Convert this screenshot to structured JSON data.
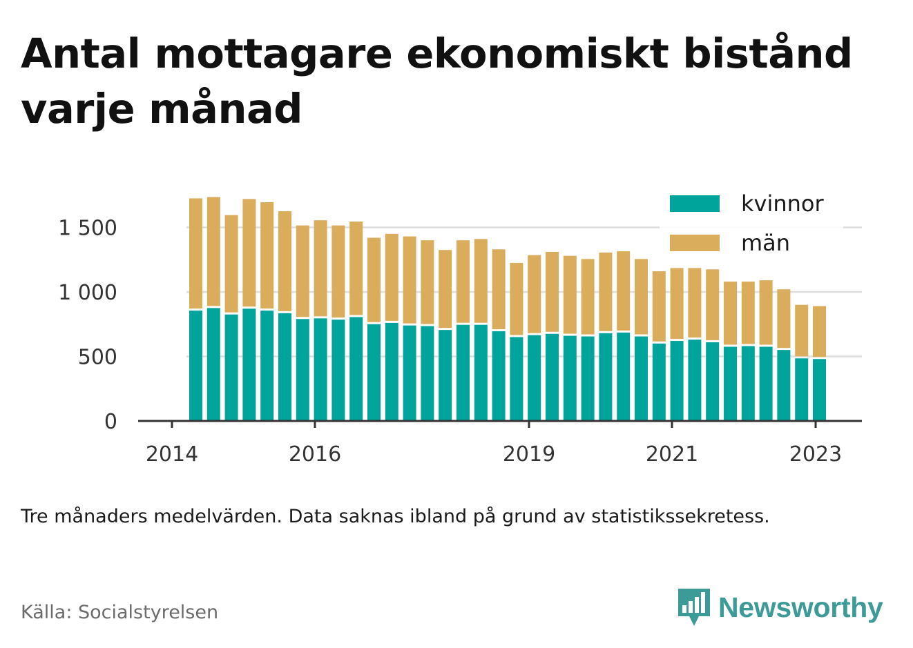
{
  "title": "Antal mottagare ekonomiskt bistånd varje månad",
  "note": "Tre månaders medelvärden. Data saknas ibland på grund av statistikssekretess.",
  "source": "Källa: Socialstyrelsen",
  "brand": {
    "name": "Newsworthy",
    "icon": "newsworthy-logo-icon"
  },
  "colors": {
    "kvinnor": "#00a49a",
    "man": "#d9ad5b",
    "grid": "#dddddd",
    "axis": "#333333",
    "brand": "#3c9b97"
  },
  "chart_data": {
    "type": "bar",
    "stacked": true,
    "x_ticks": [
      "2014",
      "2016",
      "2019",
      "2021",
      "2023"
    ],
    "y_ticks": [
      "0",
      "500",
      "1 000",
      "1 500"
    ],
    "y_tick_values": [
      0,
      500,
      1000,
      1500
    ],
    "ylim": [
      0,
      1900
    ],
    "grid": true,
    "legend_position": "top-right",
    "series": [
      {
        "name": "kvinnor",
        "values": [
          855,
          875,
          825,
          870,
          855,
          835,
          790,
          795,
          785,
          805,
          750,
          760,
          740,
          735,
          705,
          745,
          745,
          695,
          650,
          665,
          675,
          660,
          655,
          680,
          685,
          655,
          600,
          620,
          630,
          610,
          575,
          580,
          575,
          550,
          485,
          480
        ]
      },
      {
        "name": "män",
        "values": [
          870,
          860,
          770,
          850,
          840,
          790,
          725,
          760,
          730,
          740,
          670,
          690,
          690,
          665,
          620,
          655,
          665,
          635,
          575,
          620,
          635,
          620,
          600,
          625,
          630,
          600,
          560,
          565,
          555,
          565,
          505,
          500,
          515,
          470,
          415,
          410
        ]
      }
    ]
  }
}
